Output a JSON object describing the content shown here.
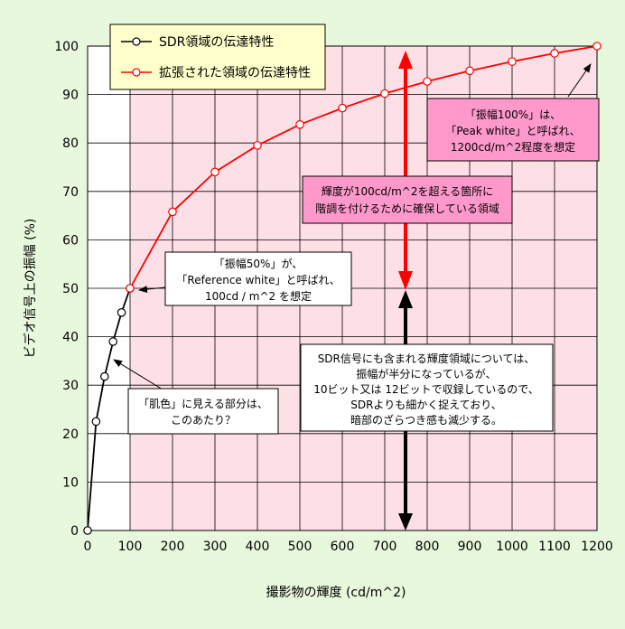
{
  "chart_data": {
    "type": "line",
    "xlabel": "撮影物の輝度 (cd/m^2)",
    "ylabel": "ビデオ信号上の振幅 (%)",
    "xlim": [
      0,
      1200
    ],
    "ylim": [
      0,
      100
    ],
    "x_ticks": [
      "0",
      "100",
      "200",
      "300",
      "400",
      "500",
      "600",
      "700",
      "800",
      "900",
      "1000",
      "1100",
      "1200"
    ],
    "y_ticks": [
      "0",
      "10",
      "20",
      "30",
      "40",
      "50",
      "60",
      "70",
      "80",
      "90",
      "100"
    ],
    "grid": true,
    "legend_position": "top-left",
    "colors": {
      "background": "#e8f8dc",
      "sdr_region": "#ffffff",
      "extended_region": "#fde0e6",
      "grid": "#000000",
      "sdr_line": "#000000",
      "extended_line": "#ff0000",
      "legend_bg": "#ffffcc",
      "peak_box": "#ff99cc",
      "range_box": "#ff99cc",
      "note_box": "#ffffff"
    },
    "series": [
      {
        "name": "SDR領域の伝達特性",
        "color": "#000000",
        "x": [
          0,
          20,
          40,
          60,
          80,
          100
        ],
        "y": [
          0,
          22.5,
          31.8,
          39,
          45,
          50
        ]
      },
      {
        "name": "拡張された領域の伝達特性",
        "color": "#ff0000",
        "x": [
          100,
          200,
          300,
          400,
          500,
          600,
          700,
          800,
          900,
          1000,
          1100,
          1200
        ],
        "y": [
          50,
          65.8,
          74,
          79.5,
          83.8,
          87.2,
          90.2,
          92.7,
          94.9,
          96.8,
          98.5,
          100
        ]
      }
    ],
    "annotations": {
      "ref_white": [
        "「振幅50%」が、",
        "「Reference white」と呼ばれ、",
        "100cd / m^2 を想定"
      ],
      "peak_white": [
        "「振幅100%」は、",
        "「Peak white」と呼ばれ、",
        "1200cd/m^2程度を想定"
      ],
      "headroom": [
        "輝度が100cd/m^2を超える箇所に",
        "階調を付けるために確保している領域"
      ],
      "skin": [
        "「肌色」に見える部分は、",
        "このあたり？"
      ],
      "sdr_note": [
        "SDR信号にも含まれる輝度領域については、",
        "振幅が半分になっているが、",
        "10ビット又は 12ビットで収録しているので、",
        "SDRよりも細かく捉えており、",
        "暗部のざらつき感も減少する。"
      ]
    }
  }
}
